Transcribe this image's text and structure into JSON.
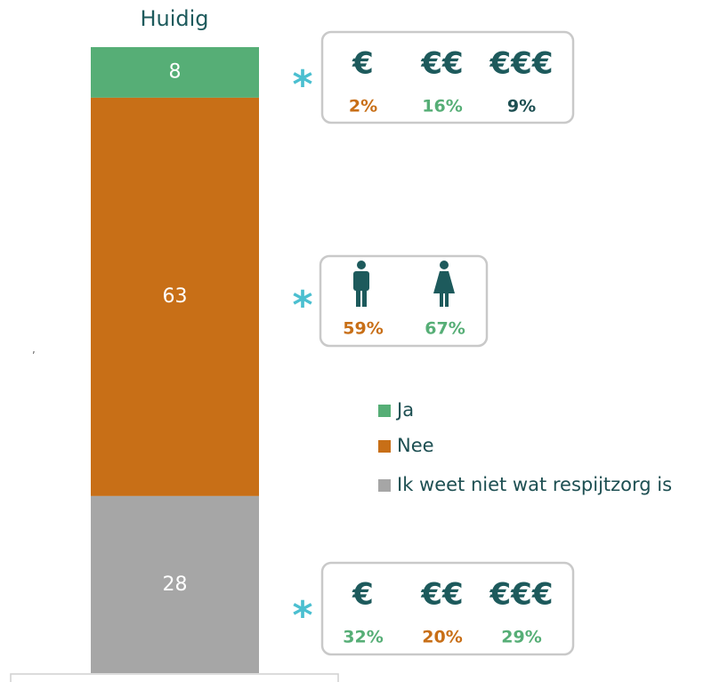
{
  "chart_data": {
    "type": "stacked_bar",
    "title": "Huidig",
    "categories": [
      "Huidig"
    ],
    "series": [
      {
        "name": "Ja",
        "color": "#56ae76",
        "values": [
          8
        ]
      },
      {
        "name": "Nee",
        "color": "#c86f17",
        "values": [
          63
        ]
      },
      {
        "name": "Ik weet niet wat respijtzorg is",
        "color": "#a6a6a6",
        "values": [
          28
        ]
      }
    ],
    "legend": "right",
    "stray_text": ",",
    "annotations": [
      {
        "marker": "*",
        "items": [
          {
            "symbol": "€",
            "value": 2,
            "value_label": "2%",
            "color": "#c86f17"
          },
          {
            "symbol": "€€",
            "value": 16,
            "value_label": "16%",
            "color": "#56ae76"
          },
          {
            "symbol": "€€€",
            "value": 9,
            "value_label": "9%",
            "color": "#1d4f52"
          }
        ]
      },
      {
        "marker": "*",
        "items": [
          {
            "value": 59,
            "value_label": "59%",
            "color": "#c86f17"
          },
          {
            "value": 67,
            "value_label": "67%",
            "color": "#56ae76"
          }
        ]
      },
      {
        "marker": "*",
        "items": [
          {
            "symbol": "€",
            "value": 32,
            "value_label": "32%",
            "color": "#56ae76"
          },
          {
            "symbol": "€€",
            "value": 20,
            "value_label": "20%",
            "color": "#c86f17"
          },
          {
            "symbol": "€€€",
            "value": 29,
            "value_label": "29%",
            "color": "#56ae76"
          }
        ]
      }
    ]
  }
}
